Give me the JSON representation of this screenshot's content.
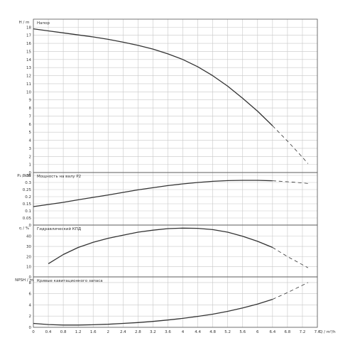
{
  "chart_data": [
    {
      "id": "head",
      "type": "line",
      "ylabel": "H / m",
      "title": "Напор",
      "ylim": [
        0,
        19
      ],
      "yticks": [
        0,
        1,
        2,
        3,
        4,
        5,
        6,
        7,
        8,
        9,
        10,
        11,
        12,
        13,
        14,
        15,
        16,
        17,
        18
      ],
      "series": [
        {
          "x": [
            0.0,
            0.4,
            0.8,
            1.2,
            1.6,
            2.0,
            2.4,
            2.8,
            3.2,
            3.6,
            4.0,
            4.4,
            4.8,
            5.2,
            5.6,
            6.0,
            6.4
          ],
          "y": [
            17.8,
            17.55,
            17.3,
            17.05,
            16.8,
            16.5,
            16.15,
            15.75,
            15.3,
            14.7,
            14.0,
            13.1,
            12.0,
            10.7,
            9.2,
            7.6,
            5.8
          ],
          "style": "solid"
        },
        {
          "x": [
            6.4,
            6.8,
            7.2,
            7.35
          ],
          "y": [
            5.8,
            3.9,
            1.9,
            1.1
          ],
          "style": "dashed"
        }
      ]
    },
    {
      "id": "power",
      "type": "line",
      "ylabel": "P₂ / kW",
      "title": "Мощность на валу P2",
      "ylim": [
        0.0,
        0.37
      ],
      "yticks": [
        0,
        0.05,
        0.1,
        0.15,
        0.2,
        0.25,
        0.3,
        0.35
      ],
      "ytick_labels": [
        "0",
        "0.05",
        "0.1",
        "0.15",
        "0.2",
        "0.25",
        "0.3",
        "0.35"
      ],
      "series": [
        {
          "x": [
            0.0,
            0.4,
            0.8,
            1.2,
            1.6,
            2.0,
            2.4,
            2.8,
            3.2,
            3.6,
            4.0,
            4.4,
            4.8,
            5.2,
            5.6,
            6.0,
            6.4
          ],
          "y": [
            0.13,
            0.145,
            0.16,
            0.178,
            0.195,
            0.212,
            0.23,
            0.248,
            0.263,
            0.278,
            0.29,
            0.3,
            0.308,
            0.313,
            0.315,
            0.315,
            0.312
          ],
          "style": "solid"
        },
        {
          "x": [
            6.4,
            6.8,
            7.2,
            7.35
          ],
          "y": [
            0.312,
            0.305,
            0.297,
            0.293
          ],
          "style": "dashed"
        }
      ]
    },
    {
      "id": "efficiency",
      "type": "line",
      "ylabel": "η / %",
      "title": "Гидравлический КПД",
      "ylim": [
        0,
        51
      ],
      "yticks": [
        0,
        10,
        20,
        30,
        40
      ],
      "series": [
        {
          "x": [
            0.4,
            0.8,
            1.2,
            1.6,
            2.0,
            2.4,
            2.8,
            3.2,
            3.6,
            4.0,
            4.4,
            4.8,
            5.2,
            5.6,
            6.0,
            6.4
          ],
          "y": [
            13,
            22,
            29,
            34,
            38,
            41,
            44,
            46,
            47.5,
            48,
            47.8,
            46.5,
            44,
            40,
            35,
            29
          ],
          "style": "solid"
        },
        {
          "x": [
            6.4,
            6.8,
            7.2,
            7.35
          ],
          "y": [
            29,
            20,
            12,
            9
          ],
          "style": "dashed"
        }
      ]
    },
    {
      "id": "npsh",
      "type": "line",
      "ylabel": "NPSH / m",
      "title": "Кривые кавитационного запаса",
      "ylim": [
        0,
        9
      ],
      "yticks": [
        0,
        2,
        4,
        6,
        8
      ],
      "xlabel": "Q / m³/h",
      "xlim": [
        0,
        7.6
      ],
      "xticks": [
        0,
        0.4,
        0.8,
        1.2,
        1.6,
        2.0,
        2.4,
        2.8,
        3.2,
        3.6,
        4.0,
        4.4,
        4.8,
        5.2,
        5.6,
        6.0,
        6.4,
        6.8,
        7.2,
        7.6
      ],
      "xtick_labels": [
        "0",
        "0.4",
        "0.8",
        "1.2",
        "1.6",
        "2",
        "2.4",
        "2.8",
        "3.2",
        "3.6",
        "4",
        "4.4",
        "4.8",
        "5.2",
        "5.6",
        "6",
        "6.4",
        "6.8",
        "7.2",
        "7.6"
      ],
      "series": [
        {
          "x": [
            0.0,
            0.4,
            0.8,
            1.2,
            1.6,
            2.0,
            2.4,
            2.8,
            3.2,
            3.6,
            4.0,
            4.4,
            4.8,
            5.2,
            5.6,
            6.0,
            6.4
          ],
          "y": [
            0.7,
            0.5,
            0.4,
            0.4,
            0.45,
            0.55,
            0.7,
            0.85,
            1.05,
            1.3,
            1.6,
            1.95,
            2.35,
            2.85,
            3.45,
            4.15,
            5.0
          ],
          "style": "solid"
        },
        {
          "x": [
            6.4,
            6.8,
            7.2,
            7.35
          ],
          "y": [
            5.0,
            6.2,
            7.5,
            8.0
          ],
          "style": "dashed"
        }
      ]
    }
  ],
  "colors": {
    "line": "#333333",
    "grid": "#c8c8c8",
    "frame": "#555555",
    "text": "#333333"
  }
}
